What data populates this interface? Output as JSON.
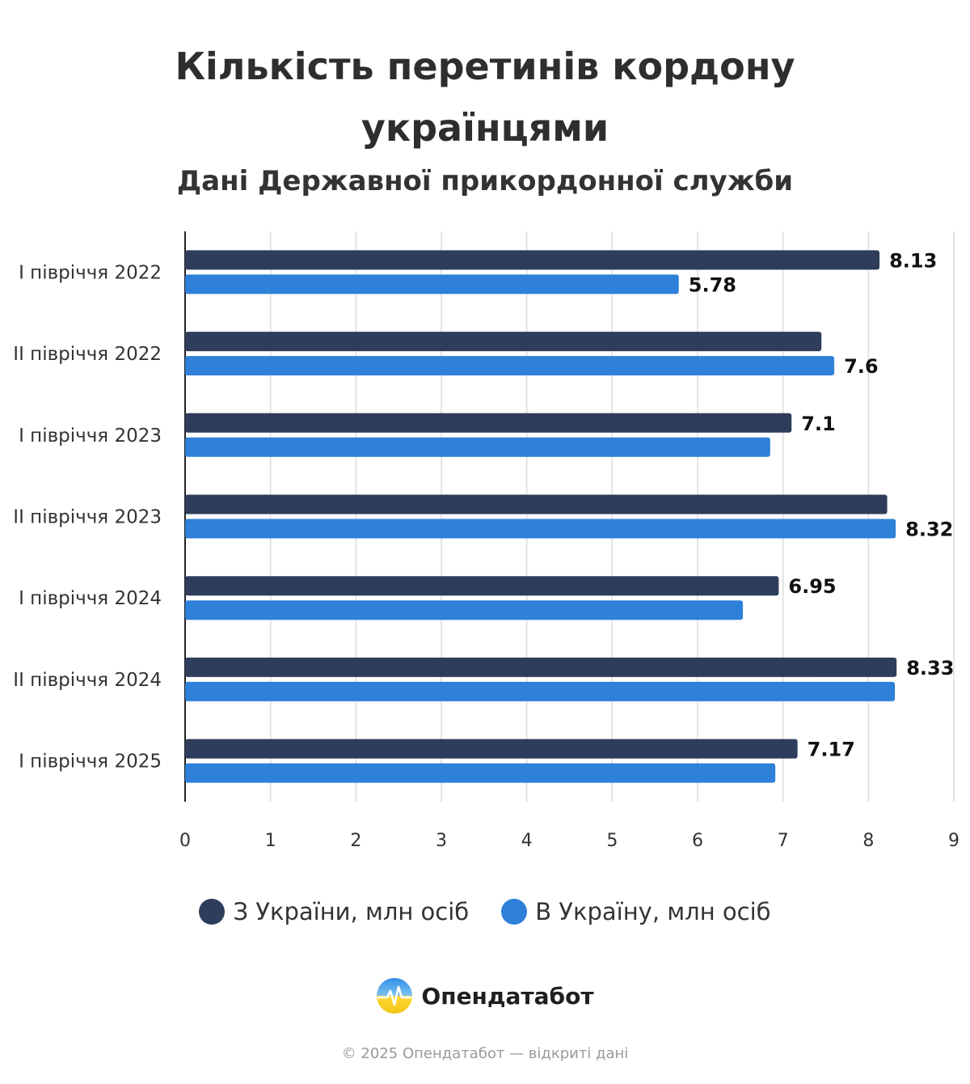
{
  "chart_data": {
    "type": "bar",
    "orientation": "horizontal",
    "title_line1": "Кількість перетинів кордону",
    "title_line2": "українцями",
    "subtitle": "Дані Державної прикордонної служби",
    "categories": [
      "I півріччя 2022",
      "II півріччя 2022",
      "I півріччя 2023",
      "II півріччя 2023",
      "I півріччя 2024",
      "II півріччя 2024",
      "I півріччя 2025"
    ],
    "series": [
      {
        "name": "З України, млн осіб",
        "color": "#2e3d5b",
        "values": [
          8.13,
          7.45,
          7.1,
          8.22,
          6.95,
          8.33,
          7.17
        ]
      },
      {
        "name": "В Україну, млн осіб",
        "color": "#2e80d8",
        "values": [
          5.78,
          7.6,
          6.85,
          8.32,
          6.53,
          8.31,
          6.91
        ]
      }
    ],
    "data_labels": [
      {
        "category": 0,
        "series": 0,
        "text": "8.13"
      },
      {
        "category": 0,
        "series": 1,
        "text": "5.78"
      },
      {
        "category": 1,
        "series": 1,
        "text": "7.6"
      },
      {
        "category": 2,
        "series": 0,
        "text": "7.1"
      },
      {
        "category": 3,
        "series": 1,
        "text": "8.32"
      },
      {
        "category": 4,
        "series": 0,
        "text": "6.95"
      },
      {
        "category": 5,
        "series": 0,
        "text": "8.33"
      },
      {
        "category": 6,
        "series": 0,
        "text": "7.17"
      }
    ],
    "xlim": [
      0,
      9
    ],
    "xticks": [
      "0",
      "1",
      "2",
      "3",
      "4",
      "5",
      "6",
      "7",
      "8",
      "9"
    ],
    "grid": true,
    "legend_position": "bottom"
  },
  "brand": {
    "name": "Опендатабот"
  },
  "footer": "© 2025 Опендатабот — відкриті дані"
}
